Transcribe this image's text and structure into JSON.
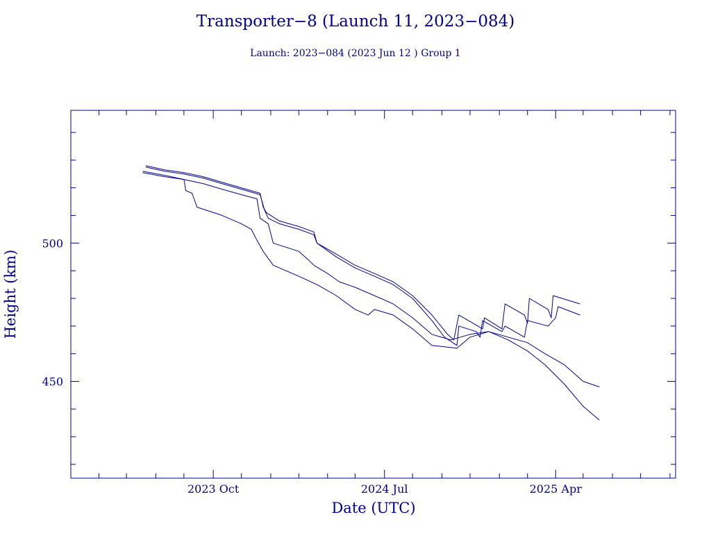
{
  "chart_data": {
    "type": "line",
    "title": "Transporter−8 (Launch 11, 2023−084)",
    "subtitle": "Launch: 2023−084  (2023 Jun 12 )  Group 1",
    "xlabel": "Date (UTC)",
    "ylabel": "Height (km)",
    "xlim": [
      "2023-02-15",
      "2025-10-10"
    ],
    "ylim": [
      415,
      548
    ],
    "grid": false,
    "line_color": "#00008b",
    "x_ticks": [
      {
        "date": "2023-10-01",
        "label": "2023 Oct"
      },
      {
        "date": "2024-07-01",
        "label": "2024 Jul"
      },
      {
        "date": "2025-04-01",
        "label": "2025 Apr"
      }
    ],
    "y_ticks": [
      {
        "value": 500,
        "label": "500"
      },
      {
        "value": 450,
        "label": "450"
      }
    ],
    "series": [
      {
        "points": [
          [
            "2023-06-15",
            528
          ],
          [
            "2023-07-15",
            526.5
          ],
          [
            "2023-08-15",
            525.5
          ],
          [
            "2023-09-15",
            524
          ],
          [
            "2023-10-15",
            522
          ],
          [
            "2023-11-15",
            520
          ],
          [
            "2023-12-15",
            518
          ],
          [
            "2023-12-20",
            513
          ],
          [
            "2023-12-25",
            511
          ],
          [
            "2024-01-15",
            508
          ],
          [
            "2024-02-15",
            506
          ],
          [
            "2024-03-10",
            504
          ],
          [
            "2024-03-15",
            500
          ],
          [
            "2024-04-15",
            496
          ],
          [
            "2024-05-15",
            492
          ],
          [
            "2024-06-15",
            489
          ],
          [
            "2024-07-15",
            486
          ],
          [
            "2024-08-15",
            481
          ],
          [
            "2024-09-15",
            474
          ],
          [
            "2024-10-10",
            467
          ],
          [
            "2024-10-20",
            465
          ],
          [
            "2024-10-28",
            474
          ],
          [
            "2024-11-20",
            471
          ],
          [
            "2024-12-05",
            469
          ],
          [
            "2024-12-08",
            473
          ],
          [
            "2025-01-05",
            469
          ],
          [
            "2025-01-10",
            478
          ],
          [
            "2025-02-10",
            474
          ],
          [
            "2025-02-15",
            471
          ],
          [
            "2025-02-18",
            480
          ],
          [
            "2025-03-20",
            476
          ],
          [
            "2025-03-25",
            473
          ],
          [
            "2025-03-28",
            481
          ],
          [
            "2025-05-10",
            478
          ]
        ]
      },
      {
        "points": [
          [
            "2023-06-15",
            527.5
          ],
          [
            "2023-07-15",
            526
          ],
          [
            "2023-08-15",
            525
          ],
          [
            "2023-09-15",
            523.5
          ],
          [
            "2023-10-15",
            521.5
          ],
          [
            "2023-11-15",
            519.5
          ],
          [
            "2023-12-15",
            517.5
          ],
          [
            "2023-12-22",
            512
          ],
          [
            "2023-12-28",
            509
          ],
          [
            "2024-01-15",
            507
          ],
          [
            "2024-02-15",
            505
          ],
          [
            "2024-03-10",
            503
          ],
          [
            "2024-03-15",
            500
          ],
          [
            "2024-04-15",
            495
          ],
          [
            "2024-05-15",
            491
          ],
          [
            "2024-06-15",
            488
          ],
          [
            "2024-07-15",
            485
          ],
          [
            "2024-08-15",
            480
          ],
          [
            "2024-09-15",
            472
          ],
          [
            "2024-10-05",
            466
          ],
          [
            "2024-10-25",
            463
          ],
          [
            "2024-10-28",
            470
          ],
          [
            "2024-11-25",
            468
          ],
          [
            "2024-12-01",
            466
          ],
          [
            "2024-12-05",
            472
          ],
          [
            "2025-01-05",
            468
          ],
          [
            "2025-01-10",
            470
          ],
          [
            "2025-02-10",
            466
          ],
          [
            "2025-02-15",
            472
          ],
          [
            "2025-03-20",
            470
          ],
          [
            "2025-04-01",
            473
          ],
          [
            "2025-04-05",
            477
          ],
          [
            "2025-05-10",
            474
          ]
        ]
      },
      {
        "points": [
          [
            "2023-06-10",
            526
          ],
          [
            "2023-07-15",
            524.5
          ],
          [
            "2023-08-15",
            523
          ],
          [
            "2023-09-15",
            521.5
          ],
          [
            "2023-10-15",
            519.5
          ],
          [
            "2023-11-15",
            517.5
          ],
          [
            "2023-12-10",
            516
          ],
          [
            "2023-12-15",
            509
          ],
          [
            "2023-12-28",
            507
          ],
          [
            "2024-01-05",
            500
          ],
          [
            "2024-02-15",
            497
          ],
          [
            "2024-03-01",
            494
          ],
          [
            "2024-03-10",
            492
          ],
          [
            "2024-04-01",
            489
          ],
          [
            "2024-04-20",
            486
          ],
          [
            "2024-05-15",
            484
          ],
          [
            "2024-06-15",
            481
          ],
          [
            "2024-07-15",
            478
          ],
          [
            "2024-08-15",
            473
          ],
          [
            "2024-09-15",
            467
          ],
          [
            "2024-10-15",
            465
          ],
          [
            "2024-11-15",
            467
          ],
          [
            "2024-12-15",
            468
          ],
          [
            "2025-01-15",
            466
          ],
          [
            "2025-02-15",
            464
          ],
          [
            "2025-03-15",
            460
          ],
          [
            "2025-04-15",
            456
          ],
          [
            "2025-05-15",
            450
          ],
          [
            "2025-06-10",
            448
          ]
        ]
      },
      {
        "points": [
          [
            "2023-06-10",
            525.5
          ],
          [
            "2023-07-15",
            524
          ],
          [
            "2023-08-15",
            523
          ],
          [
            "2023-08-18",
            519
          ],
          [
            "2023-08-28",
            518
          ],
          [
            "2023-09-05",
            513
          ],
          [
            "2023-10-15",
            510
          ],
          [
            "2023-11-15",
            507
          ],
          [
            "2023-12-01",
            505
          ],
          [
            "2023-12-10",
            501
          ],
          [
            "2023-12-20",
            497
          ],
          [
            "2024-01-05",
            492
          ],
          [
            "2024-02-15",
            488
          ],
          [
            "2024-03-15",
            485
          ],
          [
            "2024-04-15",
            481
          ],
          [
            "2024-05-15",
            476
          ],
          [
            "2024-06-05",
            474
          ],
          [
            "2024-06-15",
            476
          ],
          [
            "2024-07-15",
            474
          ],
          [
            "2024-08-15",
            469
          ],
          [
            "2024-09-15",
            463
          ],
          [
            "2024-10-25",
            462
          ],
          [
            "2024-11-15",
            466
          ],
          [
            "2024-12-15",
            468
          ],
          [
            "2025-01-15",
            465
          ],
          [
            "2025-02-15",
            461
          ],
          [
            "2025-03-15",
            456
          ],
          [
            "2025-04-15",
            449
          ],
          [
            "2025-05-15",
            441
          ],
          [
            "2025-06-10",
            436
          ]
        ]
      }
    ]
  }
}
